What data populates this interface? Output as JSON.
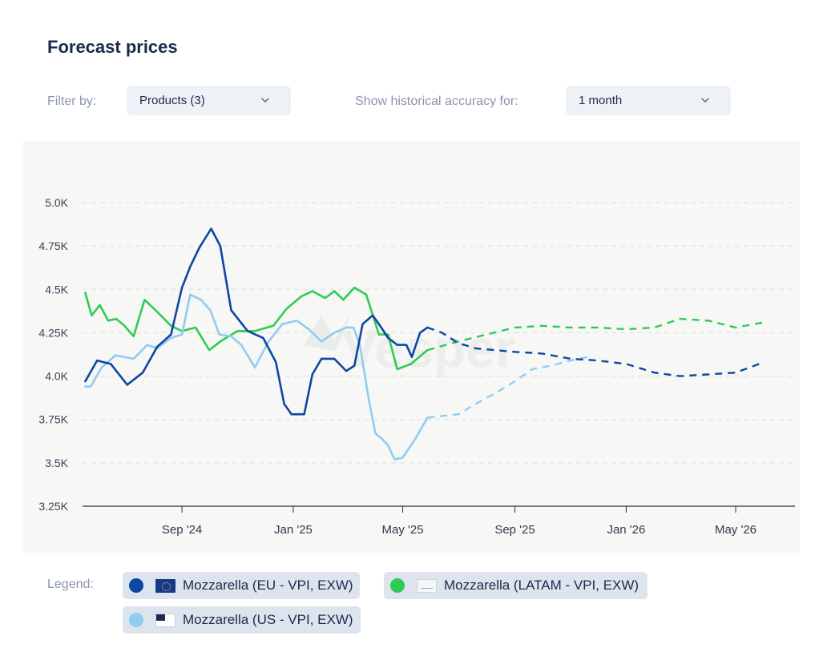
{
  "header": {
    "title": "Forecast prices"
  },
  "filters": {
    "filter_label": "Filter by:",
    "products_value": "Products (3)",
    "accuracy_label": "Show historical accuracy for:",
    "accuracy_value": "1 month"
  },
  "legend": {
    "label": "Legend:",
    "items": [
      {
        "text": "Mozzarella (EU - VPI, EXW)",
        "color": "#0d47a1",
        "flag": "eu-flag-icon"
      },
      {
        "text": "Mozzarella (LATAM - VPI, EXW)",
        "color": "#2ecc55",
        "flag": "latam-flag-icon"
      },
      {
        "text": "Mozzarella (US - VPI, EXW)",
        "color": "#8fcdf0",
        "flag": "us-flag-icon"
      }
    ]
  },
  "chart_data": {
    "type": "line",
    "x_start": "2024-05-15",
    "x_end": "2026-07-05",
    "ylim": [
      3250,
      5000
    ],
    "ytick_values": [
      3250,
      3500,
      3750,
      4000,
      4250,
      4500,
      4750,
      5000
    ],
    "ytick_labels": [
      "3.25K",
      "3.5K",
      "3.75K",
      "4.0K",
      "4.25K",
      "4.5K",
      "4.75K",
      "5.0K"
    ],
    "xticks": [
      {
        "date": "2024-09-01",
        "label": "Sep '24"
      },
      {
        "date": "2025-01-01",
        "label": "Jan '25"
      },
      {
        "date": "2025-05-01",
        "label": "May '25"
      },
      {
        "date": "2025-09-01",
        "label": "Sep '25"
      },
      {
        "date": "2026-01-01",
        "label": "Jan '26"
      },
      {
        "date": "2026-05-01",
        "label": "May '26"
      }
    ],
    "grid": true,
    "watermark": "Vesper",
    "series": [
      {
        "name": "Mozzarella (EU - VPI, EXW)",
        "color": "#0d47a1",
        "history": {
          "dates": [
            "2024-05-18",
            "2024-05-31",
            "2024-06-15",
            "2024-07-03",
            "2024-07-20",
            "2024-08-05",
            "2024-08-20",
            "2024-09-01",
            "2024-09-10",
            "2024-09-20",
            "2024-10-03",
            "2024-10-13",
            "2024-10-25",
            "2024-11-12",
            "2024-11-29",
            "2024-12-13",
            "2024-12-22",
            "2024-12-30",
            "2025-01-13",
            "2025-01-22",
            "2025-02-01",
            "2025-02-15",
            "2025-02-28",
            "2025-03-09",
            "2025-03-18",
            "2025-03-29",
            "2025-04-05",
            "2025-04-15",
            "2025-04-25",
            "2025-05-05",
            "2025-05-11",
            "2025-05-20",
            "2025-05-28"
          ],
          "values": [
            3970,
            4090,
            4070,
            3950,
            4020,
            4170,
            4240,
            4510,
            4630,
            4740,
            4850,
            4750,
            4380,
            4260,
            4220,
            4080,
            3840,
            3780,
            3780,
            4010,
            4100,
            4100,
            4030,
            4060,
            4300,
            4350,
            4300,
            4220,
            4180,
            4180,
            4110,
            4250,
            4280
          ]
        },
        "forecast": {
          "dates": [
            "2025-05-28",
            "2025-06-13",
            "2025-07-01",
            "2025-07-20",
            "2025-08-10",
            "2025-09-01",
            "2025-10-01",
            "2025-11-01",
            "2025-12-01",
            "2026-01-01",
            "2026-02-01",
            "2026-03-01",
            "2026-04-01",
            "2026-05-01",
            "2026-06-01"
          ],
          "values": [
            4280,
            4250,
            4190,
            4160,
            4150,
            4140,
            4130,
            4100,
            4090,
            4070,
            4020,
            4000,
            4010,
            4020,
            4080
          ]
        }
      },
      {
        "name": "Mozzarella (LATAM - VPI, EXW)",
        "color": "#2ecc55",
        "history": {
          "dates": [
            "2024-05-18",
            "2024-05-25",
            "2024-06-03",
            "2024-06-12",
            "2024-06-21",
            "2024-06-30",
            "2024-07-10",
            "2024-07-22",
            "2024-08-05",
            "2024-08-20",
            "2024-09-01",
            "2024-09-16",
            "2024-10-01",
            "2024-10-13",
            "2024-11-01",
            "2024-11-20",
            "2024-12-10",
            "2024-12-25",
            "2025-01-10",
            "2025-01-22",
            "2025-02-05",
            "2025-02-15",
            "2025-02-25",
            "2025-03-09",
            "2025-03-22",
            "2025-04-05",
            "2025-04-15",
            "2025-04-25",
            "2025-05-10",
            "2025-05-28"
          ],
          "values": [
            4480,
            4350,
            4410,
            4320,
            4330,
            4290,
            4230,
            4440,
            4370,
            4290,
            4260,
            4280,
            4150,
            4200,
            4260,
            4260,
            4290,
            4390,
            4460,
            4490,
            4450,
            4490,
            4440,
            4510,
            4470,
            4240,
            4240,
            4040,
            4070,
            4150
          ]
        },
        "forecast": {
          "dates": [
            "2025-05-28",
            "2025-07-01",
            "2025-08-01",
            "2025-09-01",
            "2025-10-01",
            "2025-11-01",
            "2025-12-01",
            "2026-01-01",
            "2026-02-01",
            "2026-03-01",
            "2026-04-01",
            "2026-05-01",
            "2026-06-01"
          ],
          "values": [
            4150,
            4200,
            4240,
            4280,
            4290,
            4280,
            4280,
            4270,
            4280,
            4330,
            4320,
            4280,
            4310
          ]
        }
      },
      {
        "name": "Mozzarella (US - VPI, EXW)",
        "color": "#8fcdf0",
        "history": {
          "dates": [
            "2024-05-18",
            "2024-05-24",
            "2024-06-05",
            "2024-06-20",
            "2024-07-10",
            "2024-07-25",
            "2024-08-05",
            "2024-08-20",
            "2024-09-01",
            "2024-09-10",
            "2024-09-22",
            "2024-10-02",
            "2024-10-12",
            "2024-10-25",
            "2024-11-05",
            "2024-11-20",
            "2024-12-05",
            "2024-12-20",
            "2025-01-05",
            "2025-01-18",
            "2025-02-01",
            "2025-02-15",
            "2025-02-28",
            "2025-03-08",
            "2025-03-15",
            "2025-03-25",
            "2025-04-01",
            "2025-04-08",
            "2025-04-15",
            "2025-04-22",
            "2025-05-01",
            "2025-05-15",
            "2025-05-28"
          ],
          "values": [
            3940,
            3940,
            4050,
            4120,
            4100,
            4180,
            4160,
            4220,
            4240,
            4470,
            4440,
            4380,
            4240,
            4230,
            4180,
            4050,
            4200,
            4300,
            4320,
            4270,
            4200,
            4250,
            4280,
            4280,
            4180,
            3860,
            3670,
            3640,
            3600,
            3520,
            3530,
            3640,
            3760
          ]
        },
        "forecast": {
          "dates": [
            "2025-05-28",
            "2025-06-13",
            "2025-07-01",
            "2025-07-20",
            "2025-08-10",
            "2025-09-01",
            "2025-09-20",
            "2025-10-10",
            "2025-11-01",
            "2025-11-20"
          ],
          "values": [
            3760,
            3770,
            3780,
            3840,
            3900,
            3970,
            4040,
            4060,
            4090,
            4110
          ]
        }
      }
    ]
  }
}
